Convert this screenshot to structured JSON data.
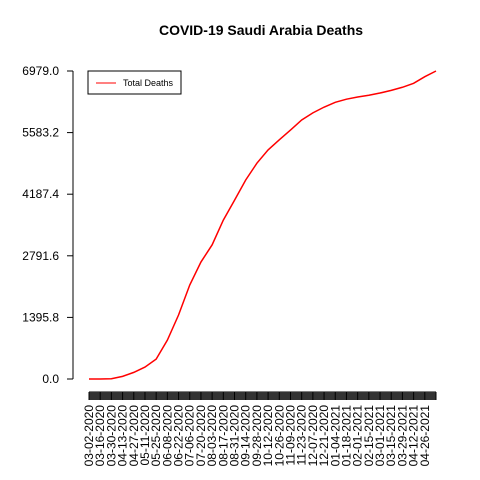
{
  "chart_data": {
    "type": "line",
    "title": "COVID-19 Saudi Arabia Deaths",
    "categories": [
      "03-02-2020",
      "03-16-2020",
      "03-30-2020",
      "04-13-2020",
      "04-27-2020",
      "05-11-2020",
      "05-25-2020",
      "06-08-2020",
      "06-22-2020",
      "07-06-2020",
      "07-20-2020",
      "08-03-2020",
      "08-17-2020",
      "08-31-2020",
      "09-14-2020",
      "09-28-2020",
      "10-12-2020",
      "10-26-2020",
      "11-09-2020",
      "11-23-2020",
      "12-07-2020",
      "12-21-2020",
      "01-04-2021",
      "01-18-2021",
      "02-01-2021",
      "02-15-2021",
      "03-01-2021",
      "03-15-2021",
      "03-29-2021",
      "04-12-2021",
      "04-26-2021",
      null
    ],
    "series": [
      {
        "name": "Total Deaths",
        "color": "#ff0000",
        "values": [
          0,
          0,
          5,
          60,
          150,
          270,
          450,
          880,
          1450,
          2130,
          2650,
          3040,
          3600,
          4050,
          4510,
          4890,
          5190,
          5420,
          5640,
          5870,
          6030,
          6160,
          6270,
          6340,
          6390,
          6430,
          6480,
          6540,
          6610,
          6700,
          6850,
          6979
        ]
      }
    ],
    "ylim": [
      0,
      6979
    ],
    "yticks": [
      {
        "value": 0,
        "label": "0.0"
      },
      1395.8,
      2791.6,
      4187.4,
      5583.2,
      {
        "value": 6979,
        "label": "6979.0"
      }
    ],
    "legend": "top-left"
  }
}
